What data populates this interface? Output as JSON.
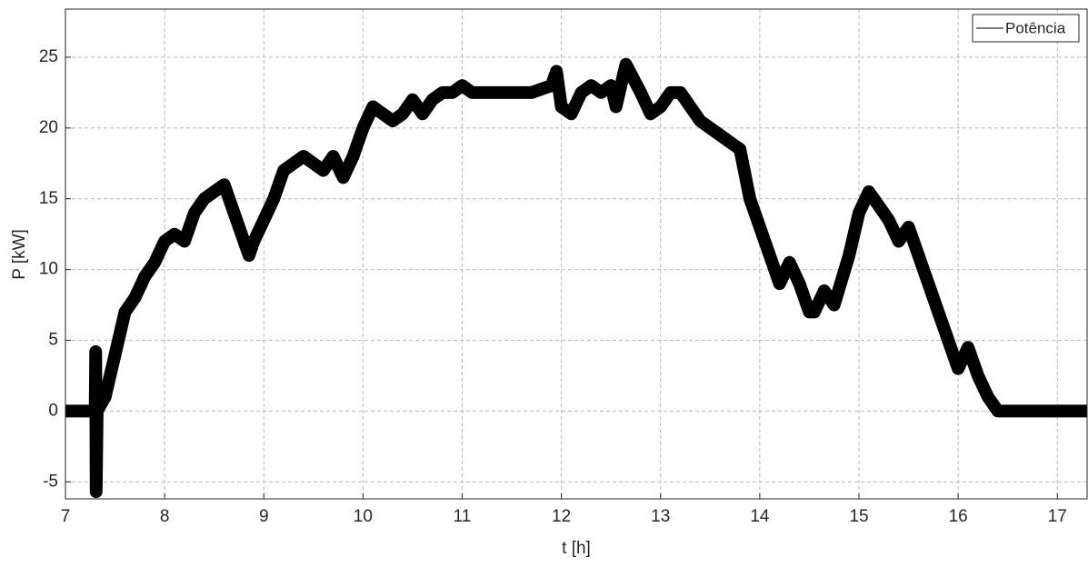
{
  "chart_data": {
    "type": "line",
    "xlabel": "t [h]",
    "ylabel": "P [kW]",
    "xlim": [
      7,
      17.3
    ],
    "ylim": [
      -6.2,
      28.4
    ],
    "xticks": [
      7,
      8,
      9,
      10,
      11,
      12,
      13,
      14,
      15,
      16,
      17
    ],
    "yticks": [
      -5,
      0,
      5,
      10,
      15,
      20,
      25
    ],
    "grid": true,
    "legend": "upper right",
    "series": [
      {
        "name": "Potência",
        "color": "#000000",
        "x": [
          7.0,
          7.3,
          7.305,
          7.31,
          7.32,
          7.4,
          7.5,
          7.6,
          7.7,
          7.8,
          7.9,
          8.0,
          8.1,
          8.2,
          8.3,
          8.4,
          8.5,
          8.6,
          8.7,
          8.8,
          8.85,
          8.9,
          9.0,
          9.1,
          9.2,
          9.3,
          9.4,
          9.5,
          9.6,
          9.7,
          9.8,
          9.9,
          10.0,
          10.1,
          10.2,
          10.3,
          10.4,
          10.5,
          10.6,
          10.7,
          10.8,
          10.9,
          11.0,
          11.1,
          11.2,
          11.3,
          11.5,
          11.7,
          11.9,
          11.95,
          12.0,
          12.1,
          12.2,
          12.3,
          12.4,
          12.5,
          12.55,
          12.65,
          12.8,
          12.9,
          13.0,
          13.1,
          13.2,
          13.3,
          13.4,
          13.5,
          13.6,
          13.7,
          13.8,
          13.9,
          14.0,
          14.1,
          14.2,
          14.3,
          14.4,
          14.5,
          14.55,
          14.65,
          14.75,
          14.9,
          15.0,
          15.1,
          15.2,
          15.3,
          15.4,
          15.5,
          15.6,
          15.7,
          15.8,
          15.9,
          16.0,
          16.1,
          16.2,
          16.3,
          16.4,
          16.6,
          17.0,
          17.3
        ],
        "values": [
          0,
          0,
          4.2,
          -5.7,
          0,
          1,
          4,
          7,
          8,
          9.5,
          10.5,
          12,
          12.5,
          12,
          14,
          15,
          15.5,
          16,
          14,
          12,
          11,
          12,
          13.5,
          15,
          17,
          17.5,
          18,
          17.5,
          17,
          18,
          16.5,
          18,
          20,
          21.5,
          21,
          20.5,
          21,
          22,
          21,
          22,
          22.5,
          22.5,
          23,
          22.5,
          22.5,
          22.5,
          22.5,
          22.5,
          23,
          24,
          21.5,
          21,
          22.5,
          23,
          22.5,
          23,
          21.5,
          24.5,
          22.5,
          21,
          21.5,
          22.5,
          22.5,
          21.5,
          20.5,
          20,
          19.5,
          19,
          18.5,
          15,
          13,
          11,
          9,
          10.5,
          9,
          7,
          7,
          8.5,
          7.5,
          11,
          14,
          15.5,
          14.5,
          13.5,
          12,
          13,
          11,
          9,
          7,
          5,
          3,
          4.5,
          2.5,
          1,
          0,
          0,
          0,
          0
        ]
      }
    ]
  }
}
